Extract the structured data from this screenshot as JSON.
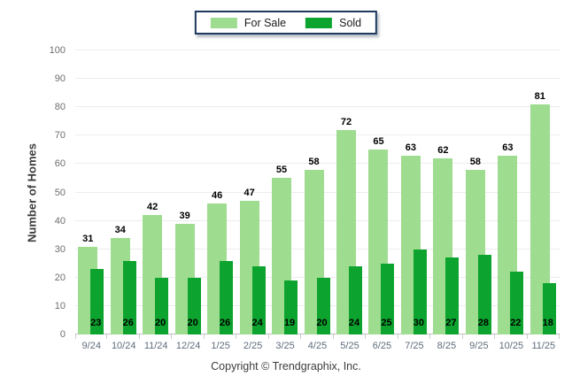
{
  "legend": {
    "for_sale_label": "For Sale",
    "sold_label": "Sold"
  },
  "footer": {
    "copyright": "Copyright © Trendgraphix, Inc."
  },
  "colors": {
    "for_sale": "#9EDC90",
    "sold": "#0CA42E",
    "grid": "#ECECEC",
    "axis": "#BFBFBF",
    "legend_border": "#1E3A5F"
  },
  "chart_data": {
    "type": "bar",
    "title": "",
    "xlabel": "",
    "ylabel": "Number of Homes",
    "ylim": [
      0,
      100
    ],
    "ytick_step": 10,
    "grid": true,
    "legend_position": "top-center",
    "categories": [
      "9/24",
      "10/24",
      "11/24",
      "12/24",
      "1/25",
      "2/25",
      "3/25",
      "4/25",
      "5/25",
      "6/25",
      "7/25",
      "8/25",
      "9/25",
      "10/25",
      "11/25"
    ],
    "series": [
      {
        "name": "For Sale",
        "color": "#9EDC90",
        "values": [
          31,
          34,
          42,
          39,
          46,
          47,
          55,
          58,
          72,
          65,
          63,
          62,
          58,
          63,
          81
        ]
      },
      {
        "name": "Sold",
        "color": "#0CA42E",
        "values": [
          23,
          26,
          20,
          20,
          26,
          24,
          19,
          20,
          24,
          25,
          30,
          27,
          28,
          22,
          18
        ]
      }
    ]
  }
}
